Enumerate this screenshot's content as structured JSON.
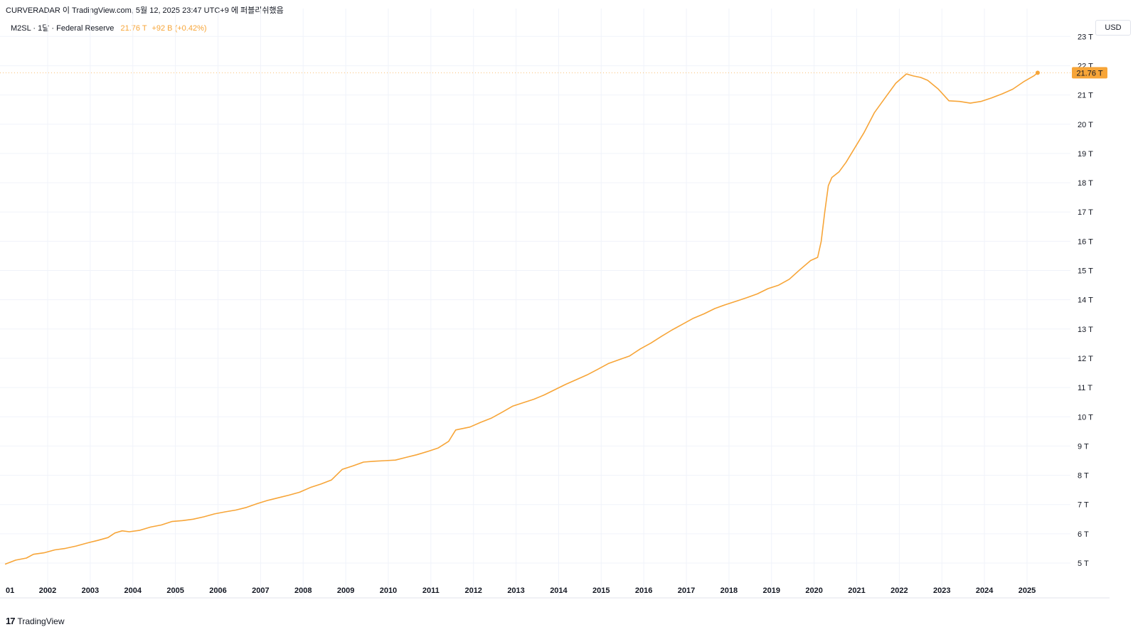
{
  "header": {
    "attribution": "CURVERADAR 이 TradingView.com, 5월 12, 2025 23:47 UTC+9 에 퍼블리쉬했음"
  },
  "legend": {
    "symbol": "M2SL · 1달 · Federal Reserve",
    "value": "21.76 T",
    "change": "+92 B (+0.42%)"
  },
  "currency_button": "USD",
  "footer": {
    "logo_icon": "tradingview-logo-icon",
    "brand": "TradingView"
  },
  "colors": {
    "line": "#f7a538",
    "grid": "#f0f3fa",
    "price_label_bg": "#f7a538"
  },
  "chart_data": {
    "type": "line",
    "series": [
      {
        "points": [
          [
            "2001-01",
            4.96
          ],
          [
            "2001-04",
            5.1
          ],
          [
            "2001-07",
            5.17
          ],
          [
            "2001-09",
            5.3
          ],
          [
            "2001-12",
            5.35
          ],
          [
            "2002-03",
            5.45
          ],
          [
            "2002-06",
            5.5
          ],
          [
            "2002-09",
            5.58
          ],
          [
            "2002-12",
            5.68
          ],
          [
            "2003-03",
            5.77
          ],
          [
            "2003-06",
            5.87
          ],
          [
            "2003-08",
            6.03
          ],
          [
            "2003-10",
            6.1
          ],
          [
            "2003-12",
            6.07
          ],
          [
            "2004-03",
            6.12
          ],
          [
            "2004-06",
            6.23
          ],
          [
            "2004-09",
            6.3
          ],
          [
            "2004-12",
            6.42
          ],
          [
            "2005-03",
            6.45
          ],
          [
            "2005-06",
            6.5
          ],
          [
            "2005-09",
            6.58
          ],
          [
            "2005-12",
            6.68
          ],
          [
            "2006-03",
            6.75
          ],
          [
            "2006-06",
            6.81
          ],
          [
            "2006-09",
            6.9
          ],
          [
            "2006-12",
            7.03
          ],
          [
            "2007-03",
            7.14
          ],
          [
            "2007-06",
            7.23
          ],
          [
            "2007-09",
            7.32
          ],
          [
            "2007-12",
            7.42
          ],
          [
            "2008-03",
            7.58
          ],
          [
            "2008-06",
            7.7
          ],
          [
            "2008-09",
            7.84
          ],
          [
            "2008-12",
            8.2
          ],
          [
            "2009-03",
            8.32
          ],
          [
            "2009-06",
            8.45
          ],
          [
            "2009-09",
            8.48
          ],
          [
            "2009-12",
            8.5
          ],
          [
            "2010-03",
            8.52
          ],
          [
            "2010-06",
            8.61
          ],
          [
            "2010-09",
            8.7
          ],
          [
            "2010-12",
            8.81
          ],
          [
            "2011-03",
            8.93
          ],
          [
            "2011-06",
            9.16
          ],
          [
            "2011-08",
            9.55
          ],
          [
            "2011-12",
            9.65
          ],
          [
            "2012-03",
            9.81
          ],
          [
            "2012-06",
            9.95
          ],
          [
            "2012-09",
            10.15
          ],
          [
            "2012-12",
            10.36
          ],
          [
            "2013-03",
            10.48
          ],
          [
            "2013-06",
            10.6
          ],
          [
            "2013-09",
            10.75
          ],
          [
            "2013-12",
            10.93
          ],
          [
            "2014-03",
            11.11
          ],
          [
            "2014-06",
            11.27
          ],
          [
            "2014-09",
            11.43
          ],
          [
            "2014-12",
            11.62
          ],
          [
            "2015-03",
            11.82
          ],
          [
            "2015-06",
            11.95
          ],
          [
            "2015-09",
            12.08
          ],
          [
            "2015-12",
            12.32
          ],
          [
            "2016-03",
            12.52
          ],
          [
            "2016-06",
            12.75
          ],
          [
            "2016-09",
            12.97
          ],
          [
            "2016-12",
            13.17
          ],
          [
            "2017-03",
            13.37
          ],
          [
            "2017-06",
            13.52
          ],
          [
            "2017-09",
            13.7
          ],
          [
            "2017-12",
            13.83
          ],
          [
            "2018-03",
            13.95
          ],
          [
            "2018-06",
            14.07
          ],
          [
            "2018-09",
            14.2
          ],
          [
            "2018-12",
            14.38
          ],
          [
            "2019-03",
            14.5
          ],
          [
            "2019-06",
            14.7
          ],
          [
            "2019-09",
            15.03
          ],
          [
            "2019-12",
            15.34
          ],
          [
            "2020-02",
            15.45
          ],
          [
            "2020-03",
            16.0
          ],
          [
            "2020-04",
            17.0
          ],
          [
            "2020-05",
            17.9
          ],
          [
            "2020-06",
            18.18
          ],
          [
            "2020-08",
            18.37
          ],
          [
            "2020-10",
            18.7
          ],
          [
            "2020-12",
            19.1
          ],
          [
            "2021-03",
            19.7
          ],
          [
            "2021-06",
            20.4
          ],
          [
            "2021-09",
            20.9
          ],
          [
            "2021-12",
            21.4
          ],
          [
            "2022-03",
            21.72
          ],
          [
            "2022-05",
            21.65
          ],
          [
            "2022-07",
            21.6
          ],
          [
            "2022-09",
            21.5
          ],
          [
            "2022-12",
            21.2
          ],
          [
            "2023-03",
            20.8
          ],
          [
            "2023-06",
            20.78
          ],
          [
            "2023-09",
            20.72
          ],
          [
            "2023-12",
            20.78
          ],
          [
            "2024-03",
            20.9
          ],
          [
            "2024-06",
            21.04
          ],
          [
            "2024-09",
            21.2
          ],
          [
            "2024-12",
            21.45
          ],
          [
            "2025-03",
            21.66
          ],
          [
            "2025-04",
            21.76
          ]
        ]
      }
    ],
    "xlabel": "",
    "ylabel": "",
    "x_tick_labels": [
      "01",
      "2002",
      "2003",
      "2004",
      "2005",
      "2006",
      "2007",
      "2008",
      "2009",
      "2010",
      "2011",
      "2012",
      "2013",
      "2014",
      "2015",
      "2016",
      "2017",
      "2018",
      "2019",
      "2020",
      "2021",
      "2022",
      "2023",
      "2024",
      "2025"
    ],
    "y_tick_labels": [
      "5 T",
      "6 T",
      "7 T",
      "8 T",
      "9 T",
      "10 T",
      "11 T",
      "12 T",
      "13 T",
      "14 T",
      "15 T",
      "16 T",
      "17 T",
      "18 T",
      "19 T",
      "20 T",
      "21 T",
      "22 T",
      "23 T"
    ],
    "last_value_label": "21.76 T",
    "ylim": [
      4.2,
      23.2
    ],
    "grid": true,
    "scale_side": "right"
  }
}
